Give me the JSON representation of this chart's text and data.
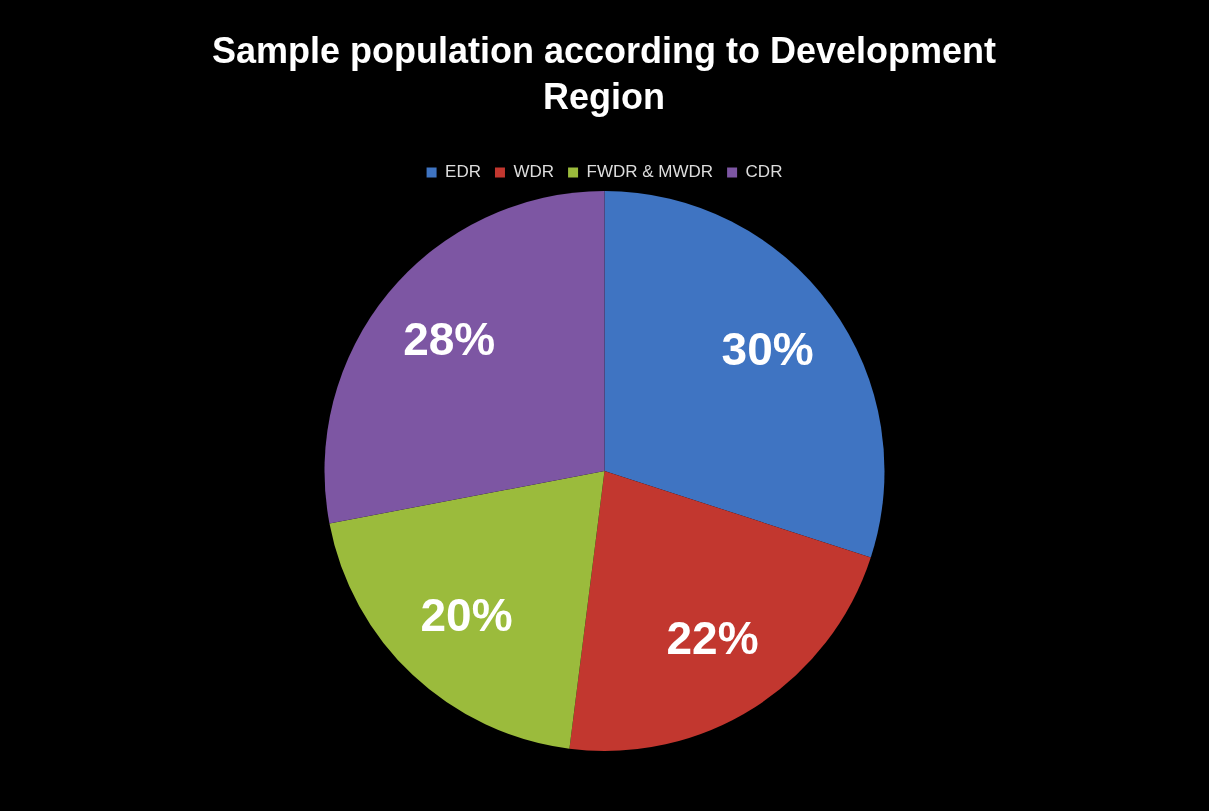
{
  "chart_data": {
    "type": "pie",
    "title": "Sample population according to Development Region",
    "categories": [
      "EDR",
      "WDR",
      "FWDR & MWDR",
      "CDR"
    ],
    "values": [
      30,
      22,
      20,
      28
    ],
    "value_labels": [
      "30%",
      "22%",
      "20%",
      "28%"
    ],
    "colors": [
      "#3f74c2",
      "#c2372f",
      "#9bbb3c",
      "#7d56a3"
    ],
    "legend": "top"
  }
}
